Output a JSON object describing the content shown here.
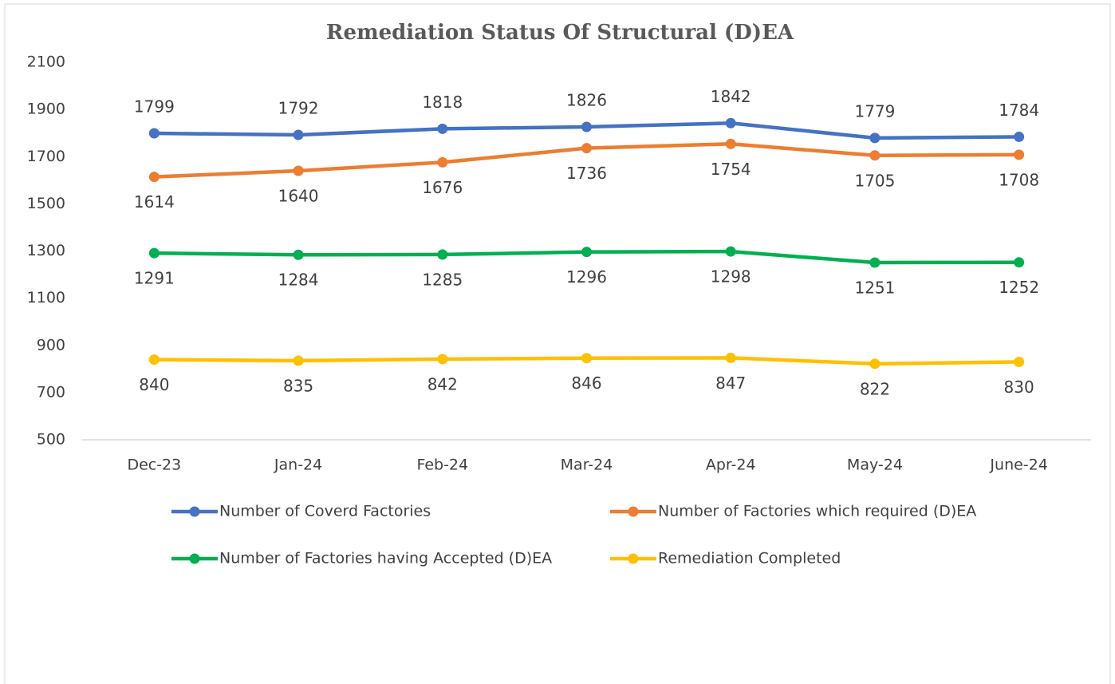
{
  "chart_data": {
    "type": "line",
    "title": "Remediation Status Of Structural (D)EA",
    "categories": [
      "Dec-23",
      "Jan-24",
      "Feb-24",
      "Mar-24",
      "Apr-24",
      "May-24",
      "June-24"
    ],
    "series": [
      {
        "name": "Number of Coverd Factories",
        "color": "#4472c4",
        "label_position": "above",
        "values": [
          1799,
          1792,
          1818,
          1826,
          1842,
          1779,
          1784
        ]
      },
      {
        "name": "Number of Factories which required (D)EA",
        "color": "#ed7d31",
        "label_position": "below",
        "values": [
          1614,
          1640,
          1676,
          1736,
          1754,
          1705,
          1708
        ]
      },
      {
        "name": "Number of Factories having Accepted (D)EA",
        "color": "#00b050",
        "label_position": "below",
        "values": [
          1291,
          1284,
          1285,
          1296,
          1298,
          1251,
          1252
        ]
      },
      {
        "name": "Remediation Completed",
        "color": "#ffc000",
        "label_position": "below",
        "values": [
          840,
          835,
          842,
          846,
          847,
          822,
          830
        ]
      }
    ],
    "ylim": [
      500,
      2100
    ],
    "yticks": [
      500,
      700,
      900,
      1100,
      1300,
      1500,
      1700,
      1900,
      2100
    ],
    "grid": false
  }
}
